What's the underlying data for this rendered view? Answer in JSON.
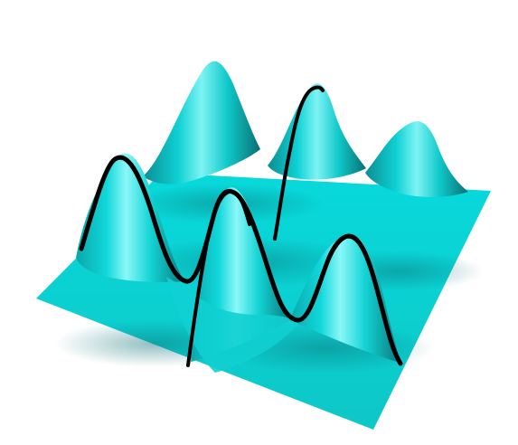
{
  "scene": {
    "kind": "3d-surface-render",
    "background_color": "#ffffff",
    "surface_color": "#00d2d2",
    "surface_highlight_color": "#7ff7f7",
    "surface_shadow_color": "#0b6f72",
    "curve_color": "#000000",
    "peak_count": 6,
    "peak_rows": 2,
    "peak_columns": 3,
    "highlighted_curves": 3
  }
}
